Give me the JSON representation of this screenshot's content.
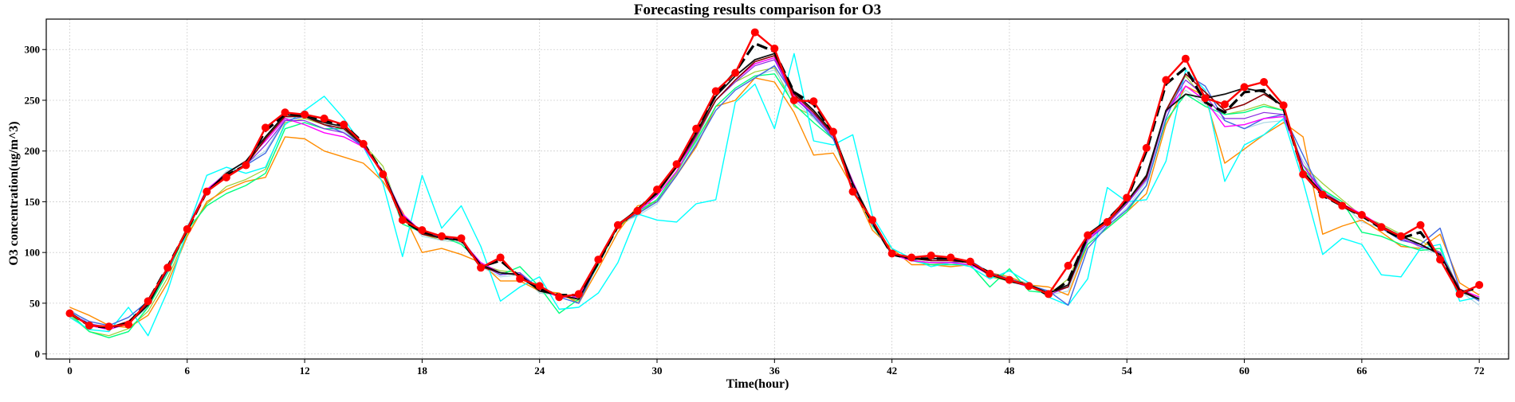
{
  "chart_data": {
    "type": "line",
    "title": "Forecasting results comparison for O3",
    "xlabel": "Time(hour)",
    "ylabel": "O3 concentration(ug/m^3)",
    "xlim": [
      -1.2,
      73.5
    ],
    "ylim": [
      -5,
      330
    ],
    "x_ticks": [
      0,
      6,
      12,
      18,
      24,
      30,
      36,
      42,
      48,
      54,
      60,
      66,
      72
    ],
    "y_ticks": [
      0,
      50,
      100,
      150,
      200,
      250,
      300
    ],
    "grid": true,
    "legend": "none",
    "x": [
      0,
      1,
      2,
      3,
      4,
      5,
      6,
      7,
      8,
      9,
      10,
      11,
      12,
      13,
      14,
      15,
      16,
      17,
      18,
      19,
      20,
      21,
      22,
      23,
      24,
      25,
      26,
      27,
      28,
      29,
      30,
      31,
      32,
      33,
      34,
      35,
      36,
      37,
      38,
      39,
      40,
      41,
      42,
      43,
      44,
      45,
      46,
      47,
      48,
      49,
      50,
      51,
      52,
      53,
      54,
      55,
      56,
      57,
      58,
      59,
      60,
      61,
      62,
      63,
      64,
      65,
      66,
      67,
      68,
      69,
      70,
      71,
      72
    ],
    "series": [
      {
        "color": "#9ACD32",
        "width": 1.2,
        "style": "solid",
        "marker": false,
        "values": [
          38,
          22,
          18,
          25,
          42,
          75,
          118,
          148,
          165,
          172,
          182,
          228,
          232,
          226,
          222,
          207,
          185,
          132,
          118,
          112,
          110,
          88,
          82,
          80,
          60,
          58,
          52,
          90,
          125,
          138,
          152,
          178,
          212,
          250,
          268,
          278,
          282,
          244,
          234,
          212,
          162,
          130,
          98,
          92,
          88,
          90,
          92,
          76,
          72,
          66,
          58,
          74,
          114,
          130,
          148,
          174,
          238,
          274,
          250,
          236,
          240,
          246,
          240,
          186,
          168,
          152,
          136,
          128,
          118,
          112,
          100,
          64,
          52
        ]
      },
      {
        "color": "#ADD8E6",
        "width": 1.2,
        "style": "solid",
        "marker": false,
        "values": [
          44,
          30,
          24,
          30,
          46,
          82,
          126,
          160,
          180,
          188,
          200,
          232,
          236,
          228,
          220,
          204,
          180,
          138,
          116,
          112,
          110,
          86,
          76,
          78,
          60,
          58,
          54,
          92,
          128,
          136,
          148,
          176,
          208,
          244,
          262,
          274,
          280,
          250,
          232,
          214,
          166,
          128,
          98,
          92,
          90,
          90,
          90,
          80,
          74,
          70,
          58,
          62,
          110,
          126,
          144,
          170,
          238,
          260,
          246,
          230,
          222,
          228,
          230,
          190,
          162,
          148,
          130,
          124,
          118,
          104,
          98,
          62,
          48
        ]
      },
      {
        "color": "#FF8C00",
        "width": 1.4,
        "style": "solid",
        "marker": false,
        "values": [
          46,
          38,
          28,
          26,
          38,
          70,
          116,
          150,
          162,
          170,
          174,
          214,
          212,
          200,
          194,
          188,
          170,
          140,
          100,
          104,
          98,
          90,
          72,
          72,
          62,
          60,
          50,
          84,
          120,
          146,
          150,
          176,
          204,
          244,
          250,
          272,
          268,
          238,
          196,
          198,
          164,
          122,
          104,
          88,
          88,
          86,
          88,
          80,
          76,
          68,
          66,
          58,
          108,
          124,
          140,
          158,
          226,
          264,
          254,
          188,
          202,
          216,
          228,
          214,
          118,
          126,
          132,
          120,
          106,
          104,
          118,
          70,
          58
        ]
      },
      {
        "color": "#00FF7F",
        "width": 1.4,
        "style": "solid",
        "marker": false,
        "values": [
          40,
          22,
          16,
          22,
          46,
          80,
          122,
          146,
          158,
          166,
          178,
          222,
          228,
          222,
          222,
          204,
          180,
          128,
          120,
          116,
          108,
          90,
          78,
          86,
          66,
          40,
          54,
          88,
          126,
          140,
          152,
          180,
          210,
          244,
          262,
          274,
          276,
          246,
          228,
          212,
          166,
          126,
          100,
          92,
          88,
          88,
          88,
          66,
          84,
          62,
          60,
          68,
          108,
          124,
          140,
          166,
          230,
          256,
          244,
          236,
          238,
          244,
          240,
          182,
          162,
          150,
          120,
          116,
          108,
          102,
          104,
          62,
          54
        ]
      },
      {
        "color": "#00FFFF",
        "width": 1.4,
        "style": "solid",
        "marker": false,
        "values": [
          36,
          24,
          22,
          46,
          18,
          62,
          122,
          176,
          184,
          178,
          184,
          226,
          240,
          254,
          232,
          204,
          168,
          96,
          176,
          124,
          146,
          106,
          52,
          66,
          76,
          44,
          46,
          60,
          90,
          138,
          132,
          130,
          148,
          152,
          248,
          266,
          222,
          296,
          210,
          206,
          216,
          136,
          104,
          94,
          86,
          90,
          86,
          74,
          82,
          70,
          56,
          48,
          74,
          164,
          150,
          152,
          190,
          280,
          260,
          170,
          206,
          216,
          232,
          170,
          98,
          114,
          108,
          78,
          76,
          104,
          108,
          52,
          56
        ]
      },
      {
        "color": "#4169E1",
        "width": 1.4,
        "style": "solid",
        "marker": false,
        "values": [
          42,
          32,
          28,
          36,
          52,
          84,
          124,
          162,
          176,
          186,
          198,
          230,
          234,
          226,
          218,
          204,
          178,
          136,
          118,
          114,
          112,
          88,
          78,
          80,
          64,
          56,
          50,
          90,
          128,
          138,
          150,
          176,
          206,
          240,
          260,
          272,
          284,
          254,
          234,
          212,
          168,
          130,
          98,
          92,
          90,
          90,
          92,
          80,
          74,
          68,
          62,
          48,
          104,
          126,
          142,
          166,
          232,
          276,
          264,
          230,
          222,
          232,
          236,
          196,
          156,
          146,
          138,
          124,
          112,
          108,
          124,
          64,
          52
        ]
      },
      {
        "color": "#FF00FF",
        "width": 1.4,
        "style": "solid",
        "marker": false,
        "values": [
          40,
          28,
          24,
          30,
          50,
          84,
          124,
          162,
          178,
          190,
          210,
          232,
          226,
          218,
          214,
          204,
          178,
          138,
          120,
          116,
          112,
          90,
          80,
          78,
          64,
          56,
          56,
          90,
          128,
          140,
          156,
          180,
          214,
          250,
          270,
          286,
          292,
          254,
          236,
          216,
          170,
          128,
          98,
          92,
          90,
          90,
          88,
          78,
          72,
          66,
          60,
          66,
          114,
          128,
          148,
          172,
          238,
          264,
          250,
          224,
          226,
          232,
          234,
          186,
          158,
          148,
          138,
          126,
          114,
          106,
          100,
          64,
          56
        ]
      },
      {
        "color": "#8A2BE2",
        "width": 1.2,
        "style": "solid",
        "marker": false,
        "values": [
          40,
          30,
          26,
          32,
          50,
          82,
          124,
          160,
          176,
          186,
          206,
          230,
          230,
          222,
          218,
          206,
          180,
          136,
          120,
          116,
          114,
          88,
          78,
          80,
          62,
          58,
          54,
          92,
          126,
          142,
          158,
          184,
          214,
          250,
          268,
          284,
          290,
          252,
          236,
          214,
          166,
          128,
          98,
          94,
          92,
          92,
          90,
          78,
          72,
          68,
          58,
          66,
          112,
          128,
          148,
          172,
          238,
          270,
          254,
          232,
          232,
          238,
          236,
          186,
          160,
          148,
          136,
          126,
          114,
          106,
          100,
          64,
          54
        ]
      },
      {
        "color": "#8B0000",
        "width": 1.6,
        "style": "solid",
        "marker": false,
        "values": [
          40,
          28,
          26,
          32,
          50,
          84,
          124,
          160,
          176,
          186,
          212,
          234,
          234,
          226,
          222,
          206,
          178,
          136,
          118,
          114,
          112,
          86,
          80,
          78,
          62,
          58,
          54,
          90,
          128,
          142,
          158,
          184,
          216,
          250,
          270,
          288,
          294,
          256,
          238,
          216,
          168,
          130,
          98,
          94,
          92,
          92,
          90,
          78,
          72,
          68,
          60,
          66,
          116,
          130,
          150,
          174,
          240,
          276,
          258,
          240,
          246,
          256,
          244,
          180,
          158,
          148,
          136,
          124,
          116,
          108,
          98,
          64,
          54
        ]
      },
      {
        "color": "#111111",
        "width": 1.8,
        "style": "solid",
        "marker": false,
        "values": [
          40,
          28,
          26,
          30,
          48,
          84,
          124,
          160,
          178,
          190,
          214,
          236,
          234,
          228,
          224,
          206,
          178,
          136,
          120,
          114,
          112,
          88,
          80,
          78,
          62,
          58,
          54,
          90,
          126,
          142,
          158,
          186,
          218,
          254,
          274,
          290,
          296,
          258,
          240,
          218,
          168,
          130,
          98,
          94,
          94,
          94,
          90,
          78,
          72,
          68,
          60,
          68,
          118,
          132,
          150,
          176,
          240,
          256,
          252,
          256,
          262,
          258,
          244,
          180,
          158,
          146,
          136,
          126,
          116,
          108,
          98,
          62,
          54
        ]
      },
      {
        "color": "#000000",
        "width": 3.2,
        "style": "dashed",
        "marker": false,
        "values": [
          40,
          28,
          26,
          30,
          52,
          86,
          122,
          160,
          176,
          186,
          220,
          236,
          236,
          230,
          226,
          208,
          178,
          132,
          120,
          116,
          112,
          86,
          92,
          76,
          64,
          58,
          58,
          90,
          126,
          142,
          160,
          186,
          220,
          256,
          278,
          306,
          298,
          258,
          246,
          218,
          162,
          130,
          98,
          94,
          94,
          94,
          90,
          80,
          72,
          68,
          58,
          72,
          116,
          132,
          152,
          200,
          266,
          282,
          248,
          238,
          258,
          260,
          242,
          178,
          156,
          146,
          136,
          124,
          114,
          120,
          94,
          60,
          66
        ]
      },
      {
        "color": "#FF0000",
        "width": 2.4,
        "style": "solid",
        "marker": true,
        "values": [
          40,
          28,
          27,
          29,
          52,
          85,
          123,
          160,
          174,
          186,
          223,
          238,
          236,
          232,
          226,
          207,
          177,
          132,
          122,
          116,
          114,
          85,
          95,
          74,
          67,
          56,
          59,
          93,
          127,
          141,
          162,
          187,
          222,
          259,
          277,
          317,
          301,
          250,
          249,
          219,
          160,
          132,
          99,
          95,
          97,
          95,
          91,
          79,
          73,
          67,
          59,
          87,
          117,
          130,
          154,
          203,
          270,
          291,
          252,
          246,
          263,
          268,
          245,
          177,
          157,
          146,
          137,
          125,
          116,
          127,
          93,
          59,
          68
        ]
      }
    ]
  }
}
